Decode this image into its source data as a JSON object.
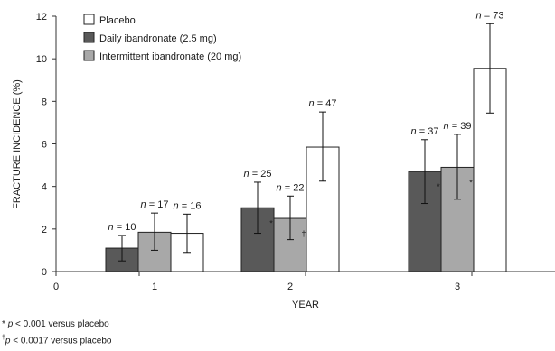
{
  "chart_data": {
    "type": "bar",
    "xlabel": "YEAR",
    "ylabel": "FRACTURE INCIDENCE (%)",
    "x_ticks": [
      "0",
      "1",
      "2",
      "3"
    ],
    "y_ticks": [
      "0",
      "2",
      "4",
      "6",
      "8",
      "10",
      "12"
    ],
    "ylim": [
      0,
      12
    ],
    "grid": false,
    "legend_position": "top-left",
    "categories": [
      "1",
      "2",
      "3"
    ],
    "series": [
      {
        "name": "Daily ibandronate (2.5 mg)",
        "color": "#595959",
        "values": [
          1.1,
          3.0,
          4.7
        ],
        "error_low": [
          0.5,
          1.8,
          3.2
        ],
        "error_high": [
          1.7,
          4.2,
          6.2
        ],
        "n_labels": [
          "n = 10",
          "n = 25",
          "n = 37"
        ],
        "markers": [
          "",
          "*",
          "*"
        ]
      },
      {
        "name": "Intermittent ibandronate (20 mg)",
        "color": "#a8a8a8",
        "values": [
          1.85,
          2.5,
          4.9
        ],
        "error_low": [
          1.0,
          1.5,
          3.4
        ],
        "error_high": [
          2.75,
          3.55,
          6.45
        ],
        "n_labels": [
          "n = 17",
          "n = 22",
          "n = 39"
        ],
        "markers": [
          "",
          "†",
          "*"
        ]
      },
      {
        "name": "Placebo",
        "color": "#ffffff",
        "values": [
          1.8,
          5.85,
          9.55
        ],
        "error_low": [
          0.9,
          4.25,
          7.45
        ],
        "error_high": [
          2.7,
          7.5,
          11.65
        ],
        "n_labels": [
          "n = 16",
          "n = 47",
          "n = 73"
        ],
        "markers": [
          "",
          "",
          ""
        ]
      }
    ],
    "legend_order": [
      "Placebo",
      "Daily ibandronate (2.5 mg)",
      "Intermittent ibandronate (20 mg)"
    ]
  },
  "footnotes": [
    {
      "mark": "*",
      "p": "p",
      "text": " < 0.001 versus placebo"
    },
    {
      "mark": "†",
      "p": "p",
      "text": " < 0.0017 versus placebo"
    }
  ]
}
